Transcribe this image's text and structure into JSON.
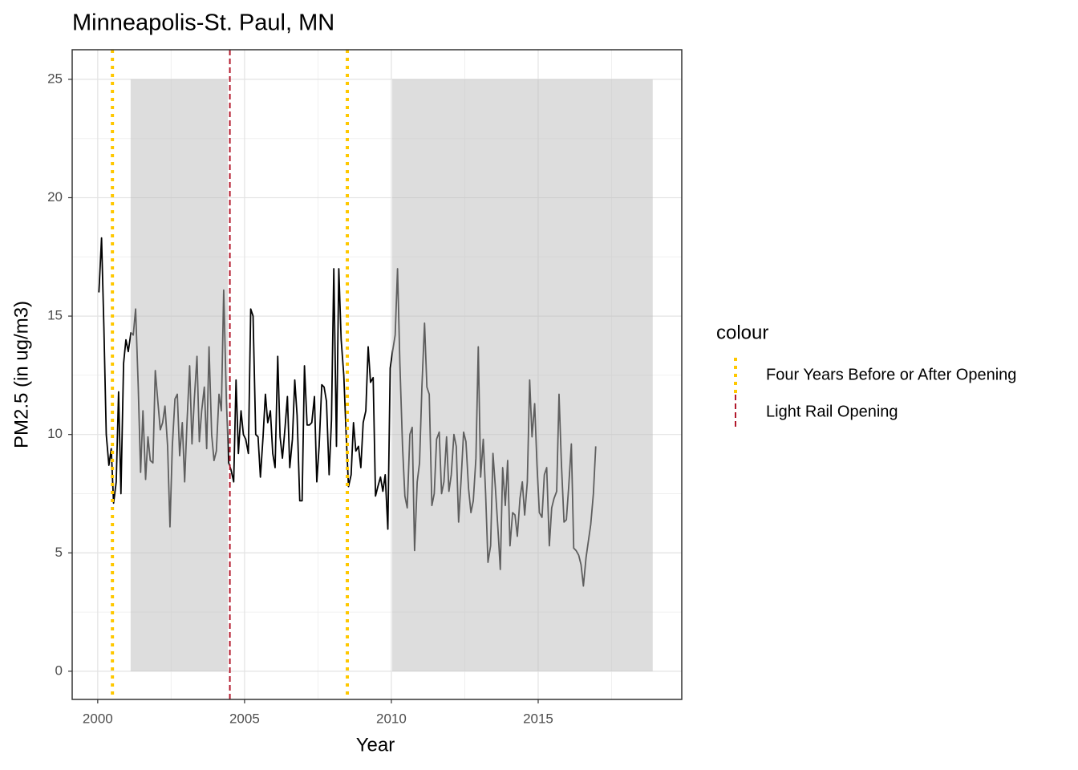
{
  "chart_data": {
    "type": "line",
    "title": "Minneapolis-St. Paul, MN",
    "x_label": "Year",
    "y_label": "PM2.5 (in ug/m3)",
    "xlim": [
      1999.13,
      2019.89
    ],
    "ylim": [
      -1.19,
      26.25
    ],
    "xticks": [
      2000,
      2005,
      2010,
      2015
    ],
    "yticks": [
      0,
      5,
      10,
      15,
      20,
      25
    ],
    "x_minor_ticks": [
      2002.5,
      2007.5,
      2012.5,
      2017.5
    ],
    "y_minor_ticks": [
      2.5,
      7.5,
      12.5,
      17.5,
      22.5
    ],
    "grid": true,
    "x": [
      2000.04,
      2000.13,
      2000.21,
      2000.29,
      2000.38,
      2000.46,
      2000.54,
      2000.63,
      2000.71,
      2000.79,
      2000.88,
      2000.96,
      2001.04,
      2001.13,
      2001.21,
      2001.29,
      2001.38,
      2001.46,
      2001.54,
      2001.63,
      2001.71,
      2001.79,
      2001.88,
      2001.96,
      2002.04,
      2002.13,
      2002.21,
      2002.29,
      2002.38,
      2002.46,
      2002.54,
      2002.63,
      2002.71,
      2002.79,
      2002.88,
      2002.96,
      2003.04,
      2003.13,
      2003.21,
      2003.29,
      2003.38,
      2003.46,
      2003.54,
      2003.63,
      2003.71,
      2003.79,
      2003.88,
      2003.96,
      2004.04,
      2004.13,
      2004.21,
      2004.29,
      2004.38,
      2004.46,
      2004.54,
      2004.63,
      2004.71,
      2004.79,
      2004.88,
      2004.96,
      2005.04,
      2005.13,
      2005.21,
      2005.29,
      2005.38,
      2005.46,
      2005.54,
      2005.63,
      2005.71,
      2005.79,
      2005.88,
      2005.96,
      2006.04,
      2006.13,
      2006.21,
      2006.29,
      2006.38,
      2006.46,
      2006.54,
      2006.63,
      2006.71,
      2006.79,
      2006.88,
      2006.96,
      2007.04,
      2007.13,
      2007.21,
      2007.29,
      2007.38,
      2007.46,
      2007.54,
      2007.63,
      2007.71,
      2007.79,
      2007.88,
      2007.96,
      2008.04,
      2008.13,
      2008.21,
      2008.29,
      2008.38,
      2008.46,
      2008.54,
      2008.63,
      2008.71,
      2008.79,
      2008.88,
      2008.96,
      2009.04,
      2009.13,
      2009.21,
      2009.29,
      2009.38,
      2009.46,
      2009.54,
      2009.63,
      2009.71,
      2009.79,
      2009.88,
      2009.96,
      2010.04,
      2010.13,
      2010.21,
      2010.29,
      2010.38,
      2010.46,
      2010.54,
      2010.63,
      2010.71,
      2010.79,
      2010.88,
      2010.96,
      2011.04,
      2011.13,
      2011.21,
      2011.29,
      2011.38,
      2011.46,
      2011.54,
      2011.63,
      2011.71,
      2011.79,
      2011.88,
      2011.96,
      2012.04,
      2012.13,
      2012.21,
      2012.29,
      2012.38,
      2012.46,
      2012.54,
      2012.63,
      2012.71,
      2012.79,
      2012.88,
      2012.96,
      2013.04,
      2013.13,
      2013.21,
      2013.29,
      2013.38,
      2013.46,
      2013.54,
      2013.63,
      2013.71,
      2013.79,
      2013.88,
      2013.96,
      2014.04,
      2014.13,
      2014.21,
      2014.29,
      2014.38,
      2014.46,
      2014.54,
      2014.63,
      2014.71,
      2014.79,
      2014.88,
      2014.96,
      2015.04,
      2015.13,
      2015.21,
      2015.29,
      2015.38,
      2015.46,
      2015.54,
      2015.63,
      2015.71,
      2015.79,
      2015.88,
      2015.96,
      2016.04,
      2016.13,
      2016.21,
      2016.29,
      2016.38,
      2016.46,
      2016.54,
      2016.63,
      2016.71,
      2016.79,
      2016.88,
      2016.96
    ],
    "series": [
      {
        "color": "#000000",
        "values": [
          16,
          18.3,
          14.5,
          10,
          8.7,
          9.4,
          7.1,
          8,
          11.8,
          7.5,
          13,
          14,
          13.5,
          14.3,
          14.2,
          15.3,
          12,
          8.4,
          11,
          8.1,
          9.9,
          8.9,
          8.8,
          12.7,
          11.5,
          10.2,
          10.5,
          11.2,
          9.5,
          6.1,
          9.5,
          11.5,
          11.7,
          9.1,
          10.5,
          8,
          10.5,
          12.9,
          9.6,
          11.5,
          13.3,
          9.7,
          11,
          12,
          9.4,
          13.7,
          10,
          8.9,
          9.3,
          11.7,
          11,
          16.1,
          11.5,
          8.8,
          8.5,
          8,
          12.3,
          9.2,
          11,
          10,
          9.8,
          9.2,
          15.3,
          15,
          10,
          9.9,
          8.2,
          9.9,
          11.7,
          10.5,
          11,
          9.2,
          8.6,
          13.3,
          9.9,
          9,
          10.3,
          11.6,
          8.6,
          9.8,
          12.3,
          10.8,
          7.2,
          7.2,
          12.9,
          10.4,
          10.4,
          10.5,
          11.6,
          8,
          9.5,
          12.1,
          12,
          11.4,
          8.3,
          10.6,
          17,
          9.5,
          17,
          14,
          12.5,
          10,
          7.8,
          8.3,
          10.5,
          9.3,
          9.5,
          8.6,
          10.5,
          11,
          13.7,
          12.2,
          12.4,
          7.4,
          7.8,
          8.2,
          7.6,
          8.3,
          6,
          12.8,
          13.5,
          14.2,
          17,
          13,
          9.5,
          7.4,
          6.9,
          10,
          10.3,
          5.1,
          8,
          8.8,
          12,
          14.7,
          12,
          11.7,
          7,
          7.5,
          9.8,
          10.1,
          7.5,
          8,
          9.9,
          7.6,
          8.3,
          10,
          9.5,
          6.3,
          8.2,
          10.1,
          9.7,
          7.7,
          6.7,
          7.2,
          9,
          13.7,
          8.2,
          9.8,
          7.5,
          4.6,
          5.3,
          9.2,
          7.8,
          6,
          4.3,
          8.6,
          7,
          8.9,
          5.3,
          6.7,
          6.6,
          5.7,
          7.3,
          8,
          6.6,
          8,
          12.3,
          9.9,
          11.3,
          8.7,
          6.7,
          6.5,
          8.3,
          8.6,
          5.3,
          6.9,
          7.3,
          7.6,
          11.7,
          8.8,
          6.3,
          6.4,
          7.8,
          9.6,
          5.2,
          5.1,
          4.9,
          4.5,
          3.6,
          4.8,
          5.5,
          6.2,
          7.5,
          9.5
        ]
      }
    ],
    "shaded_regions": [
      {
        "xmin": 2001.12,
        "xmax": 2004.43,
        "ymin": 0,
        "ymax": 25
      },
      {
        "xmin": 2010.03,
        "xmax": 2018.9,
        "ymin": 0,
        "ymax": 25
      }
    ],
    "legend_title": "colour",
    "vlines": [
      {
        "name": "Four Years Before or After Opening",
        "color": "#FFC800",
        "values": [
          2000.5,
          2008.5
        ]
      },
      {
        "name": "Light Rail Opening",
        "color": "#B2182B",
        "values": [
          2004.5
        ]
      }
    ]
  }
}
